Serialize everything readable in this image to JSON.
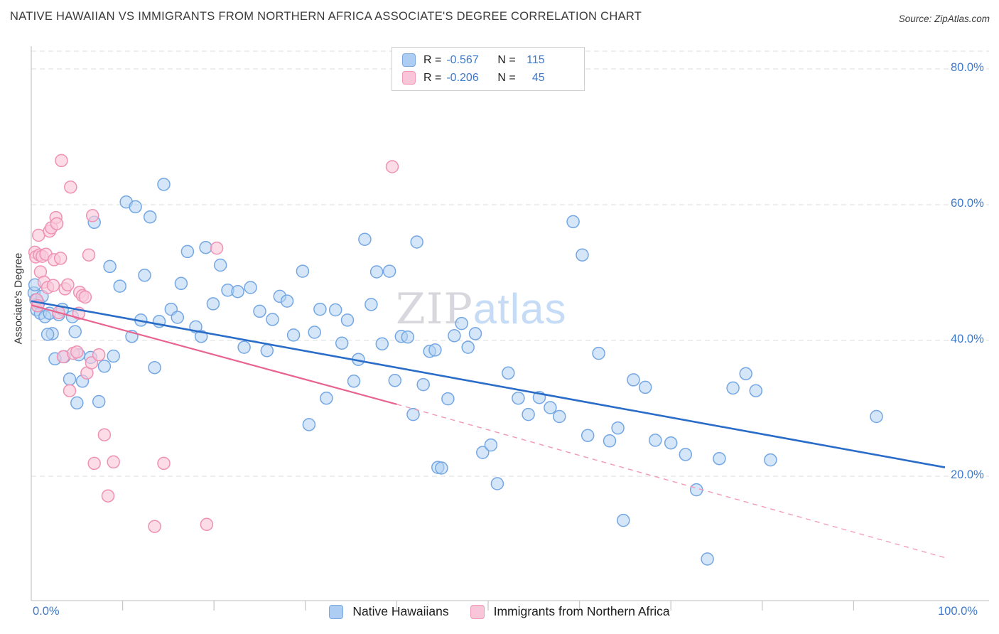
{
  "header": {
    "title": "NATIVE HAWAIIAN VS IMMIGRANTS FROM NORTHERN AFRICA ASSOCIATE'S DEGREE CORRELATION CHART",
    "source": "Source: ZipAtlas.com"
  },
  "watermark": {
    "part1": "ZIP",
    "part2": "atlas"
  },
  "axes": {
    "y_label": "Associate's Degree",
    "x_min_label": "0.0%",
    "x_max_label": "100.0%",
    "y_ticks": [
      "80.0%",
      "60.0%",
      "40.0%",
      "20.0%"
    ]
  },
  "legend_stats": {
    "r_label": "R =",
    "n_label": "N =",
    "rows": [
      {
        "series": "Native Hawaiians",
        "r": "-0.567",
        "n": "115"
      },
      {
        "series": "Immigrants from Northern Africa",
        "r": "-0.206",
        "n": "45"
      }
    ]
  },
  "bottom_legend": {
    "items": [
      {
        "label": "Native Hawaiians"
      },
      {
        "label": "Immigrants from Northern Africa"
      }
    ]
  },
  "colors": {
    "accent_blue_text": "#3d79c9",
    "blue_point_fill": "#b3d1f2",
    "blue_point_stroke": "#74a7e3",
    "pink_point_fill": "#f9c9da",
    "pink_point_stroke": "#ef92b4",
    "blue_trend": "#2a6dc8",
    "pink_trend": "#e9638f",
    "gridline": "#dcdcdc"
  },
  "chart_data": {
    "type": "scatter",
    "title": "NATIVE HAWAIIAN VS IMMIGRANTS FROM NORTHERN AFRICA ASSOCIATE'S DEGREE CORRELATION CHART",
    "xlabel": "",
    "ylabel": "Associate's Degree",
    "xlim": [
      0,
      100
    ],
    "ylim": [
      0,
      84
    ],
    "grid": true,
    "grid_y_values": [
      80,
      60,
      40,
      20
    ],
    "y_tick_labels": [
      "80.0%",
      "60.0%",
      "40.0%",
      "20.0%"
    ],
    "x_tick_positions": [
      10,
      20,
      30,
      40,
      50,
      60,
      70,
      80,
      90
    ],
    "legend_position": "bottom-center",
    "stats_legend_position": "top-center",
    "series": [
      {
        "name": "Native Hawaiians",
        "R": -0.567,
        "N": 115,
        "points": [
          [
            0.3,
            47.0
          ],
          [
            0.5,
            46.0
          ],
          [
            0.6,
            44.5
          ],
          [
            0.8,
            45.5
          ],
          [
            1.0,
            44.0
          ],
          [
            1.2,
            46.5
          ],
          [
            1.5,
            43.5
          ],
          [
            2.0,
            44.0
          ],
          [
            2.3,
            41.0
          ],
          [
            3.0,
            43.8
          ],
          [
            3.4,
            44.6
          ],
          [
            3.6,
            37.6
          ],
          [
            4.2,
            34.3
          ],
          [
            4.5,
            43.5
          ],
          [
            4.8,
            41.3
          ],
          [
            5.2,
            37.9
          ],
          [
            5.6,
            34.0
          ],
          [
            6.9,
            57.4
          ],
          [
            6.5,
            37.5
          ],
          [
            7.4,
            31.0
          ],
          [
            8.0,
            36.2
          ],
          [
            8.6,
            50.9
          ],
          [
            9.0,
            37.7
          ],
          [
            9.7,
            48.0
          ],
          [
            10.4,
            60.4
          ],
          [
            11.0,
            40.6
          ],
          [
            11.4,
            59.7
          ],
          [
            12.0,
            43.0
          ],
          [
            12.4,
            49.6
          ],
          [
            13.0,
            58.2
          ],
          [
            13.5,
            36.0
          ],
          [
            14.0,
            42.8
          ],
          [
            14.5,
            63.0
          ],
          [
            15.3,
            44.6
          ],
          [
            16.0,
            43.4
          ],
          [
            16.4,
            48.4
          ],
          [
            17.1,
            53.1
          ],
          [
            18.0,
            42.0
          ],
          [
            18.6,
            40.6
          ],
          [
            19.1,
            53.7
          ],
          [
            19.9,
            45.4
          ],
          [
            20.7,
            51.1
          ],
          [
            21.5,
            47.4
          ],
          [
            22.6,
            47.2
          ],
          [
            23.3,
            39.0
          ],
          [
            24.0,
            47.8
          ],
          [
            25.0,
            44.3
          ],
          [
            25.8,
            38.5
          ],
          [
            26.4,
            43.1
          ],
          [
            27.2,
            46.5
          ],
          [
            28.0,
            45.8
          ],
          [
            28.7,
            40.8
          ],
          [
            29.7,
            50.2
          ],
          [
            30.4,
            27.6
          ],
          [
            31.0,
            41.2
          ],
          [
            31.6,
            44.6
          ],
          [
            32.3,
            31.5
          ],
          [
            33.3,
            44.5
          ],
          [
            34.0,
            39.6
          ],
          [
            34.6,
            43.0
          ],
          [
            35.3,
            34.0
          ],
          [
            35.8,
            37.2
          ],
          [
            36.5,
            54.9
          ],
          [
            37.2,
            45.3
          ],
          [
            37.8,
            50.1
          ],
          [
            38.4,
            39.5
          ],
          [
            39.2,
            50.2
          ],
          [
            39.8,
            34.1
          ],
          [
            40.5,
            40.6
          ],
          [
            41.2,
            40.5
          ],
          [
            41.8,
            29.1
          ],
          [
            42.2,
            54.5
          ],
          [
            42.9,
            33.5
          ],
          [
            43.6,
            38.4
          ],
          [
            44.2,
            38.6
          ],
          [
            44.5,
            21.3
          ],
          [
            44.9,
            21.2
          ],
          [
            45.6,
            31.4
          ],
          [
            46.3,
            40.7
          ],
          [
            47.1,
            42.5
          ],
          [
            47.8,
            39.0
          ],
          [
            48.6,
            41.0
          ],
          [
            49.4,
            23.5
          ],
          [
            50.3,
            24.6
          ],
          [
            51.0,
            18.9
          ],
          [
            52.2,
            35.2
          ],
          [
            53.3,
            31.5
          ],
          [
            54.4,
            29.1
          ],
          [
            55.6,
            31.6
          ],
          [
            56.8,
            30.1
          ],
          [
            57.8,
            28.8
          ],
          [
            59.3,
            57.5
          ],
          [
            60.3,
            52.6
          ],
          [
            60.9,
            26.0
          ],
          [
            62.1,
            38.1
          ],
          [
            63.3,
            25.2
          ],
          [
            64.2,
            27.1
          ],
          [
            64.8,
            13.5
          ],
          [
            65.9,
            34.2
          ],
          [
            67.2,
            33.1
          ],
          [
            68.3,
            25.3
          ],
          [
            70.0,
            24.9
          ],
          [
            71.6,
            23.2
          ],
          [
            72.8,
            18.0
          ],
          [
            74.0,
            7.8
          ],
          [
            75.3,
            22.6
          ],
          [
            76.8,
            33.0
          ],
          [
            78.2,
            35.1
          ],
          [
            79.3,
            32.6
          ],
          [
            80.9,
            22.4
          ],
          [
            92.5,
            28.8
          ],
          [
            0.4,
            48.2
          ],
          [
            1.8,
            40.9
          ],
          [
            2.6,
            37.3
          ],
          [
            5.0,
            30.8
          ]
        ]
      },
      {
        "name": "Immigrants from Northern Africa",
        "R": -0.206,
        "N": 45,
        "points": [
          [
            0.4,
            53.0
          ],
          [
            0.5,
            52.3
          ],
          [
            0.6,
            46.0
          ],
          [
            0.7,
            45.1
          ],
          [
            0.8,
            55.5
          ],
          [
            0.9,
            52.6
          ],
          [
            1.0,
            50.1
          ],
          [
            1.2,
            52.4
          ],
          [
            1.4,
            48.6
          ],
          [
            1.6,
            52.7
          ],
          [
            1.8,
            47.8
          ],
          [
            2.0,
            56.1
          ],
          [
            2.2,
            56.6
          ],
          [
            2.4,
            48.1
          ],
          [
            2.5,
            51.9
          ],
          [
            2.7,
            58.1
          ],
          [
            2.8,
            57.2
          ],
          [
            3.0,
            44.1
          ],
          [
            3.2,
            52.1
          ],
          [
            3.3,
            66.5
          ],
          [
            3.5,
            37.6
          ],
          [
            3.7,
            47.6
          ],
          [
            4.0,
            48.2
          ],
          [
            4.2,
            32.6
          ],
          [
            4.3,
            62.6
          ],
          [
            4.6,
            38.1
          ],
          [
            5.0,
            38.3
          ],
          [
            5.2,
            44.0
          ],
          [
            5.3,
            47.1
          ],
          [
            5.6,
            46.6
          ],
          [
            5.9,
            46.4
          ],
          [
            6.1,
            35.2
          ],
          [
            6.3,
            52.6
          ],
          [
            6.6,
            36.7
          ],
          [
            6.7,
            58.4
          ],
          [
            6.9,
            21.9
          ],
          [
            7.4,
            37.9
          ],
          [
            8.0,
            26.1
          ],
          [
            8.4,
            17.1
          ],
          [
            9.0,
            22.1
          ],
          [
            13.5,
            12.6
          ],
          [
            14.5,
            21.9
          ],
          [
            19.2,
            12.9
          ],
          [
            20.3,
            53.6
          ],
          [
            39.5,
            65.6
          ]
        ]
      }
    ],
    "trend_lines": [
      {
        "series": "Native Hawaiians",
        "solid": {
          "x": [
            0,
            100
          ],
          "y": [
            45.8,
            21.3
          ]
        }
      },
      {
        "series": "Immigrants from Northern Africa",
        "solid": {
          "x": [
            0,
            40
          ],
          "y": [
            45.2,
            30.6
          ]
        },
        "dashed": {
          "x": [
            40,
            100
          ],
          "y": [
            30.6,
            8.0
          ]
        }
      }
    ]
  }
}
